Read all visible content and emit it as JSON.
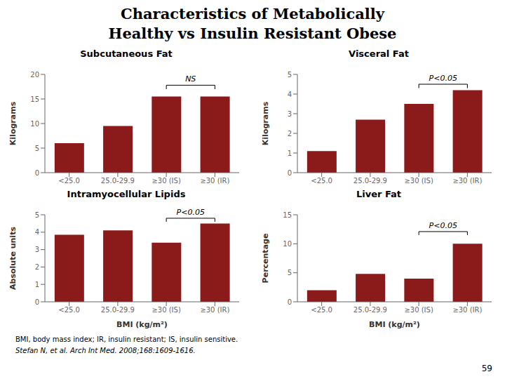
{
  "title": "Characteristics of Metabolically",
  "subtitle": "Healthy vs Insulin Resistant Obese",
  "annotations": [
    "BMI, body mass index; IR, insulin resistant; IS, insulin sensitive.",
    "Stefan N, et al. Arch Int Med. 2008;168:1609-1616.",
    "59"
  ],
  "chart_data": [
    {
      "type": "bar",
      "title": "Subcutaneous Fat",
      "ylabel": "Kilograms",
      "categories": [
        "<25.0",
        "25.0-29.9",
        "≥30 (IS)",
        "≥30 (IR)"
      ],
      "values": [
        6,
        9.5,
        15.5,
        15.5
      ],
      "color": "#8B1A1A",
      "ylim": [
        0,
        20
      ],
      "yticks": [
        0,
        5,
        10,
        15,
        20
      ],
      "grid": false,
      "annotations": [
        {
          "text": "NS",
          "x1": "≥30 (IS)",
          "x2": "≥30 (IR)",
          "y": 17.0
        }
      ]
    },
    {
      "type": "bar",
      "title": "Visceral Fat",
      "ylabel": "Kilograms",
      "categories": [
        "<25.0",
        "25.0-29.9",
        "≥30 (IS)",
        "≥30 (IR)"
      ],
      "values": [
        1.1,
        2.7,
        3.5,
        4.2
      ],
      "color": "#8B1A1A",
      "ylim": [
        0,
        5
      ],
      "yticks": [
        0,
        1,
        2,
        3,
        4,
        5
      ],
      "grid": false,
      "annotations": [
        {
          "text": "P<0.05",
          "x1": "≥30 (IS)",
          "x2": "≥30 (IR)",
          "y": 4.3
        }
      ]
    },
    {
      "type": "bar",
      "title": "Intramyocellular Lipids",
      "ylabel": "Absolute units",
      "xlabel": "BMI (kg/m²)",
      "categories": [
        "<25.0",
        "25.0-29.9",
        "≥30 (IS)",
        "≥30 (IR)"
      ],
      "values": [
        3.85,
        4.1,
        3.4,
        4.5
      ],
      "color": "#8B1A1A",
      "ylim": [
        0,
        5
      ],
      "yticks": [
        0,
        1,
        2,
        3,
        4,
        5
      ],
      "grid": false,
      "annotations": [
        {
          "text": "P<0.05",
          "x1": "≥30 (IS)",
          "x2": "≥30 (IR)",
          "y": 4.6
        }
      ]
    },
    {
      "type": "bar",
      "title": "Liver Fat",
      "ylabel": "Percentage",
      "xlabel": "BMI (kg/m²)",
      "categories": [
        "<25.0",
        "25.0-29.9",
        "≥30 (IS)",
        "≥30 (IR)"
      ],
      "values": [
        2.0,
        4.8,
        4.0,
        10.0
      ],
      "color": "#8B1A1A",
      "ylim": [
        0,
        15
      ],
      "yticks": [
        0,
        5,
        10,
        15
      ],
      "grid": false,
      "annotations": [
        {
          "text": "P<0.05",
          "x1": "≥30 (IS)",
          "x2": "≥30 (IR)",
          "y": 11.5
        }
      ]
    }
  ]
}
